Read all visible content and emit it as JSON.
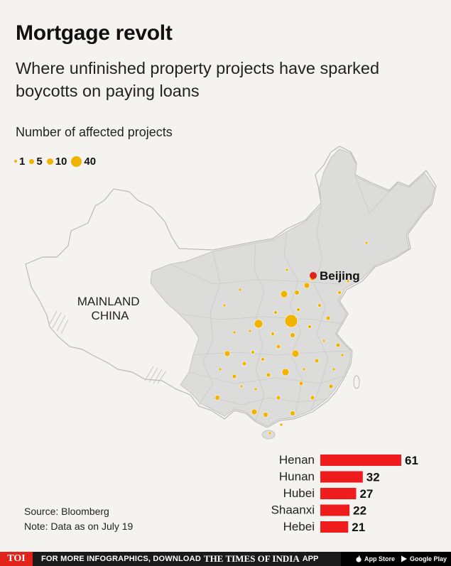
{
  "header": {
    "title": "Mortgage revolt",
    "subtitle": "Where unfinished property projects have sparked boycotts on paying loans"
  },
  "legend": {
    "title": "Number of affected projects",
    "items": [
      {
        "label": "1",
        "value": 1
      },
      {
        "label": "5",
        "value": 5
      },
      {
        "label": "10",
        "value": 10
      },
      {
        "label": "40",
        "value": 40
      }
    ],
    "dot_color": "#f0b400"
  },
  "map": {
    "region_label": "MAINLAND\nCHINA",
    "capital_label": "Beijing",
    "capital_color": "#e2231a",
    "highlight_fill": "#dcdcda",
    "base_fill": "#f4f3ef"
  },
  "chart_data": {
    "type": "bar",
    "orientation": "horizontal",
    "categories": [
      "Henan",
      "Hunan",
      "Hubei",
      "Shaanxi",
      "Hebei"
    ],
    "values": [
      61,
      32,
      27,
      22,
      21
    ],
    "bar_color": "#ee1c1c"
  },
  "source": {
    "line1": "Source: Bloomberg",
    "line2": "Note: Data as on July 19"
  },
  "footer": {
    "logo": "TOI",
    "promo": "FOR MORE INFOGRAPHICS, DOWNLOAD",
    "brand": "THE TIMES OF INDIA",
    "app": "APP",
    "app_store": "App Store",
    "google_play": "Google Play"
  }
}
